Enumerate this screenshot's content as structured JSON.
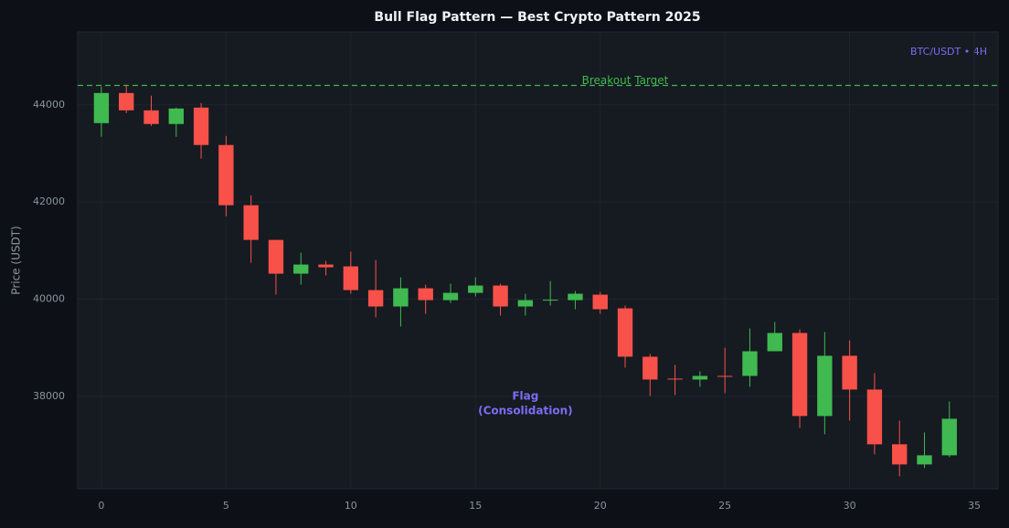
{
  "chart_data": {
    "type": "candlestick",
    "title": "Bull Flag Pattern — Best Crypto Pattern 2025",
    "ylabel": "Price (USDT)",
    "corner_label": "BTC/USDT • 4H",
    "x": [
      0,
      1,
      2,
      3,
      4,
      5,
      6,
      7,
      8,
      9,
      10,
      11,
      12,
      13,
      14,
      15,
      16,
      17,
      18,
      19,
      20,
      21,
      22,
      23,
      24,
      25,
      26,
      27,
      28,
      29,
      30,
      31,
      32,
      33,
      34
    ],
    "series": {
      "up_color": "#3fb950",
      "down_color": "#f85149",
      "open": [
        43624,
        44244,
        43887,
        43606,
        43944,
        43174,
        41934,
        41221,
        40526,
        40714,
        40676,
        40188,
        39850,
        40225,
        39981,
        40131,
        40282,
        39850,
        39981,
        39981,
        40094,
        39812,
        38817,
        38366,
        38347,
        38422,
        38422,
        38929,
        39305,
        37596,
        38836,
        38141,
        37014,
        36600,
        36788
      ],
      "high": [
        44376,
        44413,
        44188,
        43944,
        44038,
        43361,
        42141,
        41221,
        40958,
        40789,
        40977,
        40807,
        40450,
        40300,
        40319,
        40450,
        40319,
        40113,
        40375,
        40169,
        40150,
        39869,
        38873,
        38648,
        38516,
        39000,
        39399,
        39531,
        39380,
        39324,
        39155,
        38479,
        37502,
        37258,
        37896
      ],
      "low": [
        43343,
        43831,
        43568,
        43343,
        42892,
        41709,
        40751,
        40094,
        40300,
        40488,
        40113,
        39625,
        39437,
        39700,
        39925,
        40056,
        39662,
        39662,
        39869,
        39794,
        39700,
        38592,
        38009,
        38028,
        38197,
        38065,
        38197,
        38929,
        37352,
        37221,
        37502,
        36807,
        36356,
        36526,
        36750
      ],
      "close": [
        44244,
        43887,
        43606,
        43925,
        43174,
        41934,
        41221,
        40526,
        40714,
        40657,
        40188,
        39850,
        40225,
        39981,
        40131,
        40282,
        39850,
        39981,
        39990,
        40113,
        39794,
        38817,
        38347,
        38347,
        38422,
        38403,
        38929,
        39305,
        37596,
        38836,
        38141,
        37014,
        36600,
        36788,
        37540
      ]
    },
    "xlim": [
      -0.95,
      35.95
    ],
    "ylim": [
      36100,
      45500
    ],
    "xticks": [
      0,
      5,
      10,
      15,
      20,
      25,
      30,
      35
    ],
    "yticks": [
      38000,
      40000,
      42000,
      44000
    ],
    "grid": true,
    "hline": {
      "value": 44400,
      "label": "Breakout Target",
      "label_x": 21,
      "color": "#3fb950"
    },
    "annotation": {
      "lines": [
        "Flag",
        "(Consolidation)"
      ],
      "x": 17,
      "y": 37850,
      "color": "#7c6cf2"
    }
  }
}
